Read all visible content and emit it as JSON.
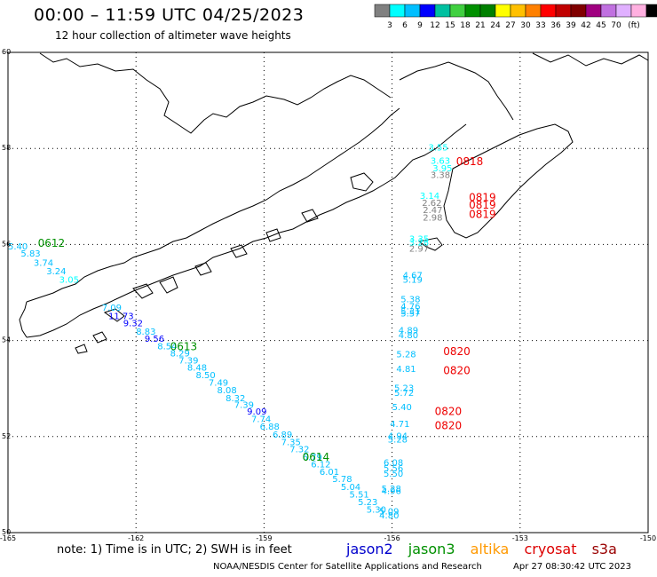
{
  "header": {
    "title": "00:00 – 11:59 UTC 04/25/2023",
    "subtitle": "12 hour collection of altimeter wave heights"
  },
  "colorbar": {
    "colors": [
      "#808080",
      "#00ffff",
      "#00bfff",
      "#0000ff",
      "#00c0a0",
      "#40d040",
      "#009000",
      "#008000",
      "#ffff00",
      "#ffc000",
      "#ff8000",
      "#ff0000",
      "#c00000",
      "#800000",
      "#a00080",
      "#c070e0",
      "#e0b0ff",
      "#ffb0e0",
      "#000000"
    ],
    "labels": [
      "3",
      "6",
      "9",
      "12",
      "15",
      "18",
      "21",
      "24",
      "27",
      "30",
      "33",
      "36",
      "39",
      "42",
      "45",
      "70"
    ],
    "unit": "(ft)"
  },
  "axes": {
    "lat_labels": [
      "60",
      "58",
      "56",
      "54",
      "52",
      "50"
    ],
    "lon_labels": [
      "-165",
      "-162",
      "-159",
      "-156",
      "-153",
      "-150"
    ]
  },
  "map_labels": [
    {
      "text": "0612",
      "sat": "jason3",
      "lon": -164.3,
      "lat": 55.95
    },
    {
      "text": "0613",
      "sat": "jason3",
      "lon": -161.2,
      "lat": 53.8
    },
    {
      "text": "0614",
      "sat": "jason3",
      "lon": -158.1,
      "lat": 51.5
    },
    {
      "text": "0818",
      "sat": "cryosat",
      "lon": -154.5,
      "lat": 57.65
    },
    {
      "text": "0819",
      "sat": "cryosat",
      "lon": -154.2,
      "lat": 56.9
    },
    {
      "text": "0819",
      "sat": "cryosat",
      "lon": -154.2,
      "lat": 56.75
    },
    {
      "text": "0819",
      "sat": "cryosat",
      "lon": -154.2,
      "lat": 56.55
    },
    {
      "text": "0820",
      "sat": "cryosat",
      "lon": -154.8,
      "lat": 53.7
    },
    {
      "text": "0820",
      "sat": "cryosat",
      "lon": -154.8,
      "lat": 53.3
    },
    {
      "text": "0820",
      "sat": "cryosat",
      "lon": -155.0,
      "lat": 52.45
    },
    {
      "text": "0820",
      "sat": "cryosat",
      "lon": -155.0,
      "lat": 52.15
    }
  ],
  "wave_values": [
    {
      "v": "5.40",
      "c": "#00bfff",
      "lon": -165.0,
      "lat": 55.9
    },
    {
      "v": "5.83",
      "c": "#00bfff",
      "lon": -164.7,
      "lat": 55.75
    },
    {
      "v": "3.74",
      "c": "#00bfff",
      "lon": -164.4,
      "lat": 55.55
    },
    {
      "v": "3.24",
      "c": "#00bfff",
      "lon": -164.1,
      "lat": 55.38
    },
    {
      "v": "3.05",
      "c": "#00ffff",
      "lon": -163.8,
      "lat": 55.2
    },
    {
      "v": "7.09",
      "c": "#00bfff",
      "lon": -162.8,
      "lat": 54.62
    },
    {
      "v": "11.73",
      "c": "#0000ff",
      "lon": -162.65,
      "lat": 54.45
    },
    {
      "v": "9.32",
      "c": "#0000ff",
      "lon": -162.3,
      "lat": 54.3
    },
    {
      "v": "8.83",
      "c": "#00bfff",
      "lon": -162.0,
      "lat": 54.12
    },
    {
      "v": "9.56",
      "c": "#0000ff",
      "lon": -161.8,
      "lat": 53.97
    },
    {
      "v": "8.54",
      "c": "#00bfff",
      "lon": -161.5,
      "lat": 53.82
    },
    {
      "v": "8.29",
      "c": "#00bfff",
      "lon": -161.2,
      "lat": 53.67
    },
    {
      "v": "7.39",
      "c": "#00bfff",
      "lon": -161.0,
      "lat": 53.52
    },
    {
      "v": "8.48",
      "c": "#00bfff",
      "lon": -160.8,
      "lat": 53.37
    },
    {
      "v": "8.50",
      "c": "#00bfff",
      "lon": -160.6,
      "lat": 53.22
    },
    {
      "v": "7.49",
      "c": "#00bfff",
      "lon": -160.3,
      "lat": 53.06
    },
    {
      "v": "8.08",
      "c": "#00bfff",
      "lon": -160.1,
      "lat": 52.9
    },
    {
      "v": "8.32",
      "c": "#00bfff",
      "lon": -159.9,
      "lat": 52.74
    },
    {
      "v": "7.39",
      "c": "#00bfff",
      "lon": -159.7,
      "lat": 52.6
    },
    {
      "v": "9.09",
      "c": "#0000ff",
      "lon": -159.4,
      "lat": 52.46
    },
    {
      "v": "7.74",
      "c": "#00bfff",
      "lon": -159.3,
      "lat": 52.3
    },
    {
      "v": "6.88",
      "c": "#00bfff",
      "lon": -159.1,
      "lat": 52.14
    },
    {
      "v": "6.89",
      "c": "#00bfff",
      "lon": -158.8,
      "lat": 51.98
    },
    {
      "v": "7.35",
      "c": "#00bfff",
      "lon": -158.6,
      "lat": 51.82
    },
    {
      "v": "7.32",
      "c": "#00bfff",
      "lon": -158.4,
      "lat": 51.67
    },
    {
      "v": "6.79",
      "c": "#00bfff",
      "lon": -158.1,
      "lat": 51.51
    },
    {
      "v": "6.12",
      "c": "#00bfff",
      "lon": -157.9,
      "lat": 51.36
    },
    {
      "v": "6.01",
      "c": "#00bfff",
      "lon": -157.7,
      "lat": 51.2
    },
    {
      "v": "5.78",
      "c": "#00bfff",
      "lon": -157.4,
      "lat": 51.05
    },
    {
      "v": "5.04",
      "c": "#00bfff",
      "lon": -157.2,
      "lat": 50.89
    },
    {
      "v": "5.51",
      "c": "#00bfff",
      "lon": -157.0,
      "lat": 50.73
    },
    {
      "v": "5.23",
      "c": "#00bfff",
      "lon": -156.8,
      "lat": 50.57
    },
    {
      "v": "5.30",
      "c": "#00bfff",
      "lon": -156.6,
      "lat": 50.42
    },
    {
      "v": "3.55",
      "c": "#00ffff",
      "lon": -155.15,
      "lat": 57.96
    },
    {
      "v": "3.63",
      "c": "#00ffff",
      "lon": -155.1,
      "lat": 57.68
    },
    {
      "v": "3.95",
      "c": "#00ffff",
      "lon": -155.05,
      "lat": 57.52
    },
    {
      "v": "3.38",
      "c": "#808080",
      "lon": -155.1,
      "lat": 57.38
    },
    {
      "v": "3.14",
      "c": "#00ffff",
      "lon": -155.35,
      "lat": 56.95
    },
    {
      "v": "2.62",
      "c": "#808080",
      "lon": -155.3,
      "lat": 56.8
    },
    {
      "v": "2.47",
      "c": "#808080",
      "lon": -155.28,
      "lat": 56.65
    },
    {
      "v": "2.98",
      "c": "#808080",
      "lon": -155.28,
      "lat": 56.5
    },
    {
      "v": "3.35",
      "c": "#00ffff",
      "lon": -155.6,
      "lat": 56.05
    },
    {
      "v": "3.28",
      "c": "#00ffff",
      "lon": -155.6,
      "lat": 55.98
    },
    {
      "v": "2.97",
      "c": "#808080",
      "lon": -155.6,
      "lat": 55.85
    },
    {
      "v": "4.67",
      "c": "#00bfff",
      "lon": -155.75,
      "lat": 55.3
    },
    {
      "v": "5.19",
      "c": "#00bfff",
      "lon": -155.75,
      "lat": 55.2
    },
    {
      "v": "5.38",
      "c": "#00bfff",
      "lon": -155.8,
      "lat": 54.8
    },
    {
      "v": "4.76",
      "c": "#00bfff",
      "lon": -155.8,
      "lat": 54.65
    },
    {
      "v": "5.31",
      "c": "#00bfff",
      "lon": -155.8,
      "lat": 54.55
    },
    {
      "v": "5.57",
      "c": "#00bfff",
      "lon": -155.8,
      "lat": 54.5
    },
    {
      "v": "4.89",
      "c": "#00bfff",
      "lon": -155.85,
      "lat": 54.15
    },
    {
      "v": "4.80",
      "c": "#00bfff",
      "lon": -155.85,
      "lat": 54.05
    },
    {
      "v": "5.28",
      "c": "#00bfff",
      "lon": -155.9,
      "lat": 53.65
    },
    {
      "v": "4.81",
      "c": "#00bfff",
      "lon": -155.9,
      "lat": 53.35
    },
    {
      "v": "5.23",
      "c": "#00bfff",
      "lon": -155.95,
      "lat": 52.95
    },
    {
      "v": "5.72",
      "c": "#00bfff",
      "lon": -155.95,
      "lat": 52.85
    },
    {
      "v": "5.40",
      "c": "#00bfff",
      "lon": -156.0,
      "lat": 52.55
    },
    {
      "v": "4.71",
      "c": "#00bfff",
      "lon": -156.05,
      "lat": 52.2
    },
    {
      "v": "4.94",
      "c": "#00bfff",
      "lon": -156.1,
      "lat": 51.95
    },
    {
      "v": "5.28",
      "c": "#00bfff",
      "lon": -156.1,
      "lat": 51.88
    },
    {
      "v": "6.08",
      "c": "#00bfff",
      "lon": -156.2,
      "lat": 51.4
    },
    {
      "v": "5.56",
      "c": "#00bfff",
      "lon": -156.2,
      "lat": 51.28
    },
    {
      "v": "5.50",
      "c": "#00bfff",
      "lon": -156.2,
      "lat": 51.16
    },
    {
      "v": "5.28",
      "c": "#00bfff",
      "lon": -156.25,
      "lat": 50.85
    },
    {
      "v": "4.96",
      "c": "#00bfff",
      "lon": -156.25,
      "lat": 50.8
    },
    {
      "v": "5.09",
      "c": "#00bfff",
      "lon": -156.3,
      "lat": 50.38
    },
    {
      "v": "4.80",
      "c": "#00bfff",
      "lon": -156.3,
      "lat": 50.3
    }
  ],
  "footer": {
    "note": "note:  1) Time is in UTC;  2) SWH is in feet",
    "satellites": [
      {
        "name": "jason2",
        "color": "#0000cc"
      },
      {
        "name": "jason3",
        "color": "#009000"
      },
      {
        "name": "altika",
        "color": "#ff9900"
      },
      {
        "name": "cryosat",
        "color": "#dd0000"
      },
      {
        "name": "s3a",
        "color": "#990000"
      }
    ],
    "credit": "NOAA/NESDIS Center for Satellite Applications and Research",
    "timestamp": "Apr 27 08:30:42 UTC 2023"
  },
  "label_colors": {
    "jason3": "#009000",
    "cryosat": "#ee0000"
  }
}
